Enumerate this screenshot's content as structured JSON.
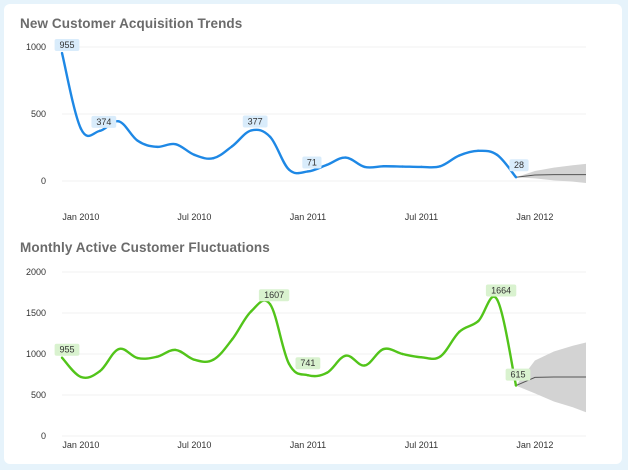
{
  "chart_data": [
    {
      "type": "line",
      "title": "New Customer Acquisition Trends",
      "color": "#1e88e5",
      "label_bg": "#d9ecfb",
      "ylim": [
        0,
        1000
      ],
      "yticks": [
        0,
        500,
        1000
      ],
      "xticks": [
        {
          "label": "Jan 2010",
          "x": 1
        },
        {
          "label": "Jul 2010",
          "x": 7
        },
        {
          "label": "Jan 2011",
          "x": 13
        },
        {
          "label": "Jul 2011",
          "x": 19
        },
        {
          "label": "Jan 2012",
          "x": 25
        }
      ],
      "xlim": [
        0,
        27.7
      ],
      "grid": true,
      "series": [
        {
          "x": [
            0,
            1,
            2,
            3,
            4,
            5,
            6,
            7,
            8,
            9,
            10,
            11,
            12,
            13,
            14,
            15,
            16,
            17,
            18,
            19,
            20,
            21,
            22,
            23,
            24
          ],
          "values": [
            955,
            390,
            374,
            445,
            300,
            255,
            275,
            195,
            170,
            260,
            377,
            330,
            85,
            71,
            120,
            175,
            105,
            110,
            108,
            105,
            110,
            190,
            225,
            195,
            28
          ]
        }
      ],
      "data_labels": [
        {
          "index": 0,
          "text": "955"
        },
        {
          "index": 2,
          "text": "374"
        },
        {
          "index": 10,
          "text": "377"
        },
        {
          "index": 13,
          "text": "71"
        },
        {
          "index": 24,
          "text": "28"
        }
      ],
      "forecast": {
        "x": [
          24,
          25,
          26,
          27,
          27.7
        ],
        "values": [
          28,
          45,
          48,
          48,
          48
        ],
        "upper": [
          28,
          75,
          100,
          118,
          128
        ],
        "lower": [
          28,
          20,
          5,
          -5,
          -15
        ]
      }
    },
    {
      "type": "line",
      "title": "Monthly Active Customer Fluctuations",
      "color": "#52c41a",
      "label_bg": "#d9f2cf",
      "ylim": [
        0,
        2000
      ],
      "yticks": [
        0,
        500,
        1000,
        1500,
        2000
      ],
      "xticks": [
        {
          "label": "Jan 2010",
          "x": 1
        },
        {
          "label": "Jul 2010",
          "x": 7
        },
        {
          "label": "Jan 2011",
          "x": 13
        },
        {
          "label": "Jul 2011",
          "x": 19
        },
        {
          "label": "Jan 2012",
          "x": 25
        }
      ],
      "xlim": [
        0,
        27.7
      ],
      "grid": true,
      "series": [
        {
          "x": [
            0,
            1,
            2,
            3,
            4,
            5,
            6,
            7,
            8,
            9,
            10,
            11,
            12,
            13,
            14,
            15,
            16,
            17,
            18,
            19,
            20,
            21,
            22,
            23,
            24
          ],
          "values": [
            955,
            720,
            790,
            1060,
            950,
            965,
            1050,
            930,
            930,
            1180,
            1520,
            1607,
            880,
            741,
            770,
            980,
            860,
            1060,
            1000,
            960,
            970,
            1270,
            1400,
            1664,
            615
          ]
        }
      ],
      "data_labels": [
        {
          "index": 0,
          "text": "955"
        },
        {
          "index": 11,
          "text": "1607"
        },
        {
          "index": 13,
          "text": "741"
        },
        {
          "index": 23,
          "text": "1664"
        },
        {
          "index": 24,
          "text": "615"
        }
      ],
      "forecast": {
        "x": [
          24,
          25,
          26,
          27,
          27.7
        ],
        "values": [
          615,
          715,
          720,
          720,
          720
        ],
        "upper": [
          615,
          920,
          1030,
          1100,
          1140
        ],
        "lower": [
          615,
          520,
          420,
          350,
          290
        ]
      }
    }
  ]
}
